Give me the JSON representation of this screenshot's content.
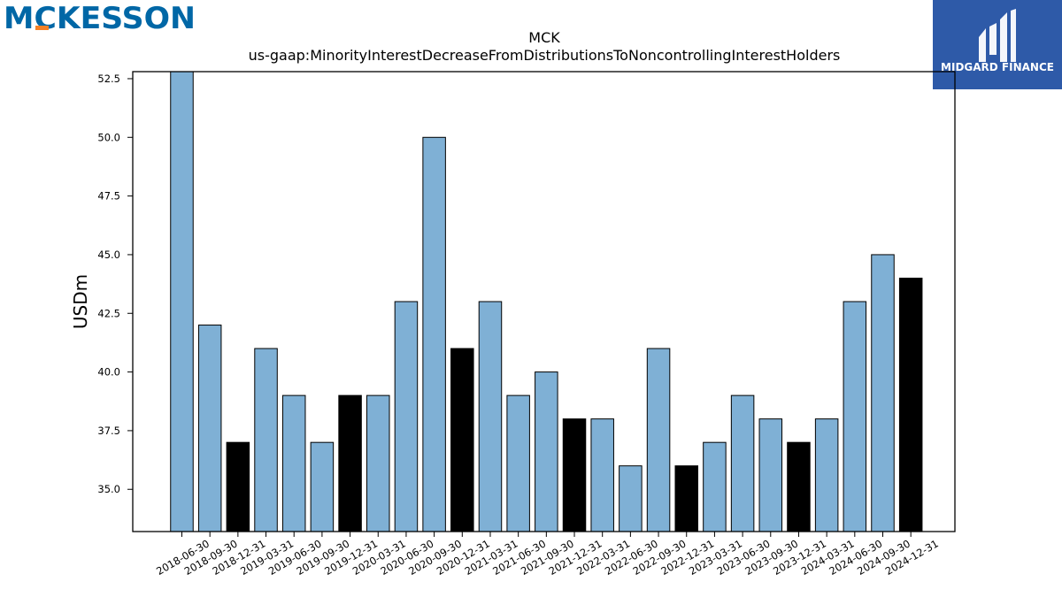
{
  "logos": {
    "left_text": "MCKESSON",
    "right_text": "MIDGARD FINANCE"
  },
  "colors": {
    "bar_default": "#7fb0d5",
    "bar_highlight": "#000000",
    "logo_left": "#0067a6",
    "logo_left_accent": "#f58025",
    "logo_right_bg": "#2e5aa8"
  },
  "chart_data": {
    "type": "bar",
    "title": "MCK",
    "subtitle": "us-gaap:MinorityInterestDecreaseFromDistributionsToNoncontrollingInterestHolders",
    "xlabel": "",
    "ylabel": "USDm",
    "ylim": [
      33.2,
      52.8
    ],
    "yticks": [
      "35.0",
      "37.5",
      "40.0",
      "42.5",
      "45.0",
      "47.5",
      "50.0",
      "52.5"
    ],
    "grid": false,
    "categories": [
      "2018-06-30",
      "2018-09-30",
      "2018-12-31",
      "2019-03-31",
      "2019-06-30",
      "2019-09-30",
      "2019-12-31",
      "2020-03-31",
      "2020-06-30",
      "2020-09-30",
      "2020-12-31",
      "2021-03-31",
      "2021-06-30",
      "2021-09-30",
      "2021-12-31",
      "2022-03-31",
      "2022-06-30",
      "2022-09-30",
      "2022-12-31",
      "2023-03-31",
      "2023-06-30",
      "2023-09-30",
      "2023-12-31",
      "2024-03-31",
      "2024-06-30",
      "2024-09-30",
      "2024-12-31"
    ],
    "values": [
      53,
      42,
      37,
      41,
      39,
      37,
      39,
      39,
      43,
      50,
      41,
      43,
      39,
      40,
      38,
      38,
      36,
      41,
      36,
      37,
      39,
      38,
      37,
      38,
      43,
      45,
      44
    ],
    "highlight_categories": [
      "2018-12-31",
      "2019-12-31",
      "2020-12-31",
      "2021-12-31",
      "2022-12-31",
      "2023-12-31",
      "2024-12-31"
    ]
  }
}
